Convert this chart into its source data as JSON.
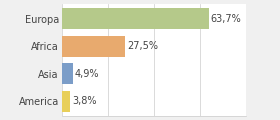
{
  "categories": [
    "Europa",
    "Africa",
    "Asia",
    "America"
  ],
  "values": [
    63.7,
    27.5,
    4.9,
    3.8
  ],
  "labels": [
    "63,7%",
    "27,5%",
    "4,9%",
    "3,8%"
  ],
  "bar_colors": [
    "#b5c98a",
    "#e8aa6e",
    "#7b9dc8",
    "#e8cf5a"
  ],
  "background_color": "#f0f0f0",
  "plot_bg_color": "#ffffff",
  "xlim": [
    0,
    80
  ],
  "label_fontsize": 7,
  "category_fontsize": 7,
  "bar_height": 0.75
}
